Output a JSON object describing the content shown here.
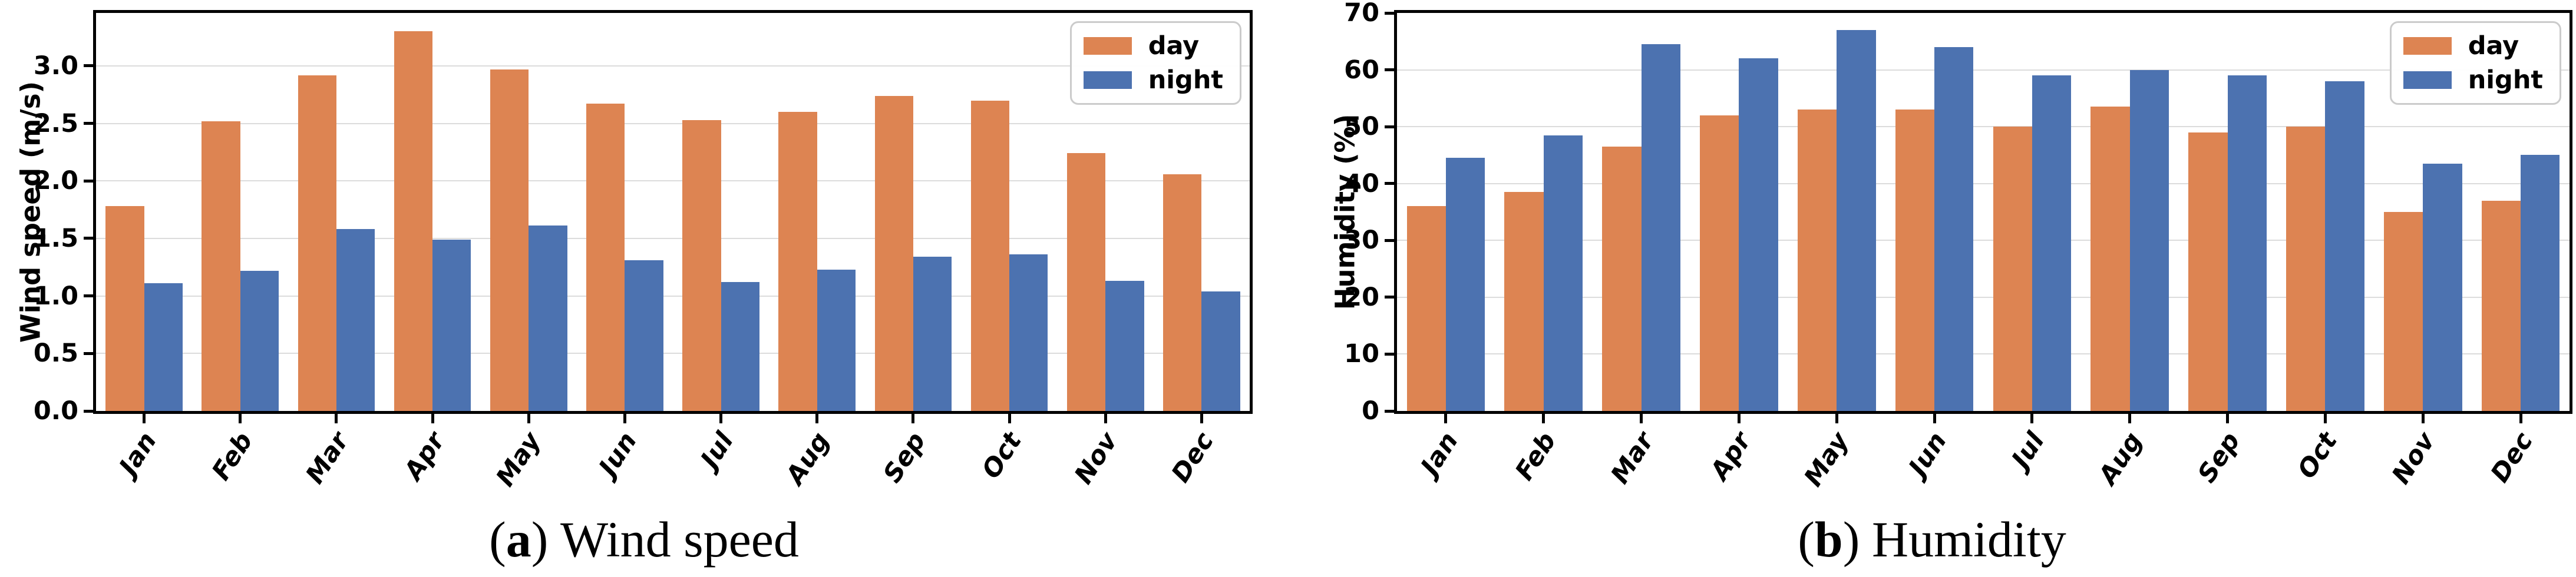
{
  "palette": {
    "day": "#DD8452",
    "night": "#4C72B0",
    "gridline": "#DCDCDC",
    "spine": "#000000",
    "legend_border": "#CBCBCB",
    "background": "#FFFFFF"
  },
  "legend": {
    "entries": [
      {
        "label": "day",
        "color_key": "day",
        "swatch": "day-color-swatch"
      },
      {
        "label": "night",
        "color_key": "night",
        "swatch": "night-color-swatch"
      }
    ]
  },
  "chart_data": [
    {
      "type": "bar",
      "title": "",
      "xlabel": "",
      "ylabel": "Wind speed (m/s)",
      "ylim": [
        0,
        3.46
      ],
      "grid": "horizontal",
      "legend_position": "upper right",
      "categories": [
        "Jan",
        "Feb",
        "Mar",
        "Apr",
        "May",
        "Jun",
        "Jul",
        "Aug",
        "Sep",
        "Oct",
        "Nov",
        "Dec"
      ],
      "yticks": [
        0.0,
        0.5,
        1.0,
        1.5,
        2.0,
        2.5,
        3.0
      ],
      "ytick_labels": [
        "0.0",
        "0.5",
        "1.0",
        "1.5",
        "2.0",
        "2.5",
        "3.0"
      ],
      "series": [
        {
          "name": "day",
          "values": [
            1.78,
            2.52,
            2.92,
            3.3,
            2.97,
            2.67,
            2.53,
            2.6,
            2.74,
            2.7,
            2.24,
            2.06
          ]
        },
        {
          "name": "night",
          "values": [
            1.11,
            1.22,
            1.58,
            1.49,
            1.61,
            1.31,
            1.12,
            1.23,
            1.34,
            1.36,
            1.13,
            1.04
          ]
        }
      ],
      "caption": {
        "open": "(",
        "marker": "a",
        "close": ")",
        "title": "Wind speed"
      }
    },
    {
      "type": "bar",
      "title": "",
      "xlabel": "",
      "ylabel": "Humidity (%)",
      "ylim": [
        0,
        70
      ],
      "grid": "horizontal",
      "legend_position": "upper right",
      "categories": [
        "Jan",
        "Feb",
        "Mar",
        "Apr",
        "May",
        "Jun",
        "Jul",
        "Aug",
        "Sep",
        "Oct",
        "Nov",
        "Dec"
      ],
      "yticks": [
        0,
        10,
        20,
        30,
        40,
        50,
        60,
        70
      ],
      "ytick_labels": [
        "0",
        "10",
        "20",
        "30",
        "40",
        "50",
        "60",
        "70"
      ],
      "series": [
        {
          "name": "day",
          "values": [
            36,
            38.5,
            46.5,
            52,
            53,
            53,
            50,
            53.5,
            49,
            50,
            35,
            37
          ]
        },
        {
          "name": "night",
          "values": [
            44.5,
            48.5,
            64.5,
            62,
            67,
            64,
            59,
            60,
            59,
            58,
            43.5,
            45
          ]
        }
      ],
      "caption": {
        "open": "(",
        "marker": "b",
        "close": ")",
        "title": "Humidity"
      }
    }
  ]
}
